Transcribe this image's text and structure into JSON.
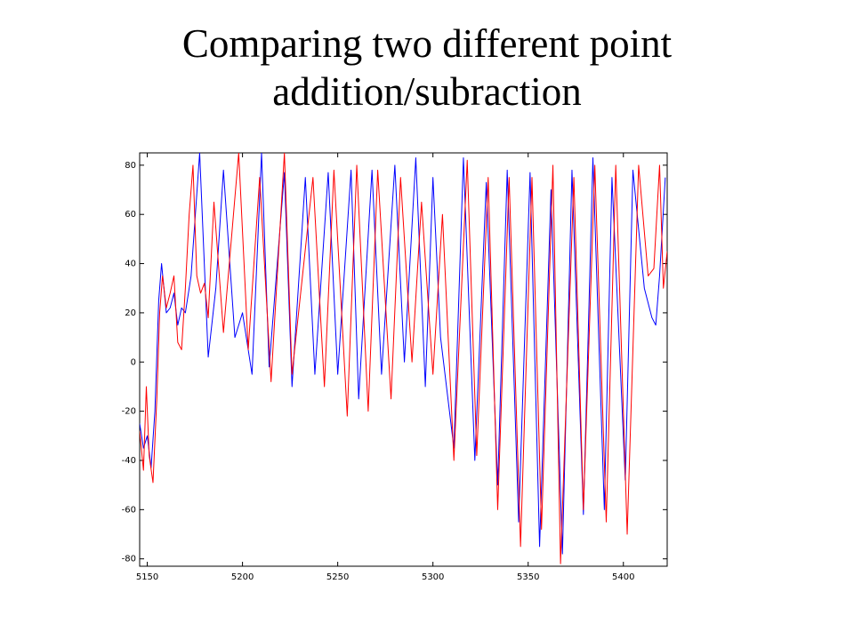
{
  "chart_data": {
    "type": "line",
    "title": "Comparing two different point addition/subraction",
    "xlim": [
      5146,
      5423
    ],
    "xticks": [
      5150,
      5200,
      5250,
      5300,
      5350,
      5400
    ],
    "ylim": [
      -83,
      85
    ],
    "yticks": [
      -80,
      -60,
      -40,
      -20,
      0,
      20,
      40,
      60,
      80
    ],
    "grid": false,
    "series": [
      {
        "color": "#0000ff",
        "x": [
          5146,
          5148,
          5150,
          5152,
          5154,
          5156,
          5157.5,
          5160,
          5162,
          5164,
          5166,
          5168,
          5170,
          5173,
          5177.5,
          5182,
          5186,
          5190,
          5196,
          5200,
          5205,
          5210,
          5214,
          5222,
          5226,
          5233,
          5238,
          5245,
          5250,
          5257,
          5261,
          5268,
          5273,
          5280,
          5285,
          5291,
          5296,
          5300,
          5304,
          5311,
          5316,
          5322,
          5328,
          5334,
          5339,
          5345,
          5351,
          5356,
          5362,
          5368,
          5373,
          5379,
          5384,
          5390,
          5394,
          5401,
          5405,
          5411,
          5415,
          5417,
          5419,
          5422
        ],
        "values": [
          -25,
          -35,
          -30,
          -43,
          -20,
          25,
          40,
          20,
          22,
          28,
          15,
          22,
          20,
          35,
          85,
          2,
          30,
          78,
          10,
          20,
          -5,
          85,
          -2,
          77,
          -10,
          75,
          -5,
          77,
          -5,
          78,
          -15,
          78,
          -5,
          80,
          0,
          83,
          -10,
          75,
          10,
          -35,
          83,
          -40,
          73,
          -50,
          78,
          -65,
          77,
          -75,
          70,
          -78,
          78,
          -62,
          83,
          -60,
          75,
          -48,
          78,
          30,
          18,
          15,
          35,
          75
        ]
      },
      {
        "color": "#ff0000",
        "x": [
          5146,
          5148,
          5149.5,
          5151,
          5153,
          5155,
          5156.5,
          5158,
          5160,
          5162,
          5164,
          5166,
          5168,
          5170,
          5172,
          5174,
          5176,
          5178,
          5180,
          5182,
          5185,
          5190,
          5198,
          5203,
          5209,
          5215,
          5222,
          5226,
          5237,
          5243,
          5248,
          5255,
          5260,
          5266,
          5271,
          5278,
          5283,
          5289,
          5294,
          5300,
          5305,
          5311,
          5318,
          5323,
          5329,
          5334,
          5340,
          5346,
          5352,
          5357,
          5363,
          5367,
          5374,
          5379,
          5385,
          5391,
          5396,
          5402,
          5408,
          5413,
          5416,
          5419,
          5421,
          5423
        ],
        "values": [
          -28,
          -44,
          -10,
          -38,
          -49,
          -15,
          20,
          35,
          22,
          28,
          35,
          8,
          5,
          30,
          60,
          80,
          35,
          28,
          32,
          18,
          65,
          12,
          85,
          5,
          75,
          -8,
          85,
          -5,
          75,
          -10,
          78,
          -22,
          80,
          -20,
          78,
          -15,
          75,
          0,
          65,
          -5,
          60,
          -40,
          82,
          -38,
          75,
          -60,
          75,
          -75,
          75,
          -68,
          80,
          -82,
          75,
          -60,
          80,
          -65,
          80,
          -70,
          80,
          35,
          38,
          80,
          30,
          45
        ]
      }
    ]
  }
}
